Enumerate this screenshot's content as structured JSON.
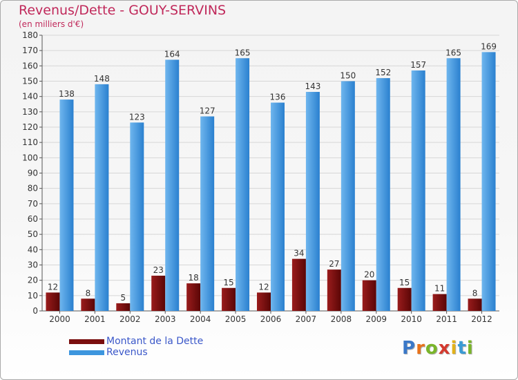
{
  "header": {
    "title": "Revenus/Dette - GOUY-SERVINS",
    "subtitle": "(en milliers d'€)"
  },
  "colors": {
    "title": "#c0285a",
    "dette": "#7a0e0e",
    "revenus": "#3d96de",
    "legend_text": "#3a57c9",
    "grid": "#d6d6d6"
  },
  "chart_data": {
    "type": "bar",
    "title": "Revenus/Dette - GOUY-SERVINS",
    "ylabel": "(en milliers d'€)",
    "xlabel": "",
    "categories": [
      "2000",
      "2001",
      "2002",
      "2003",
      "2004",
      "2005",
      "2006",
      "2007",
      "2008",
      "2009",
      "2010",
      "2011",
      "2012"
    ],
    "series": [
      {
        "name": "Montant de la Dette",
        "values": [
          12,
          8,
          5,
          23,
          18,
          15,
          12,
          34,
          27,
          20,
          15,
          11,
          8
        ]
      },
      {
        "name": "Revenus",
        "values": [
          138,
          148,
          123,
          164,
          127,
          165,
          136,
          143,
          150,
          152,
          157,
          165,
          169
        ]
      }
    ],
    "ylim": [
      0,
      180
    ],
    "yticks": [
      0,
      10,
      20,
      30,
      40,
      50,
      60,
      70,
      80,
      90,
      100,
      110,
      120,
      130,
      140,
      150,
      160,
      170,
      180
    ],
    "grid": true,
    "legend_position": "bottom-left"
  },
  "legend": {
    "items": [
      {
        "label": "Montant de la Dette"
      },
      {
        "label": "Revenus"
      }
    ]
  },
  "logo": {
    "letters": [
      "P",
      "r",
      "o",
      "x",
      "i",
      "t",
      "i"
    ],
    "letter_colors": [
      "#3a78c8",
      "#e8731c",
      "#7ab52a",
      "#d43a2f",
      "#e2b21a",
      "#3a9bd4",
      "#7ab52a"
    ]
  }
}
